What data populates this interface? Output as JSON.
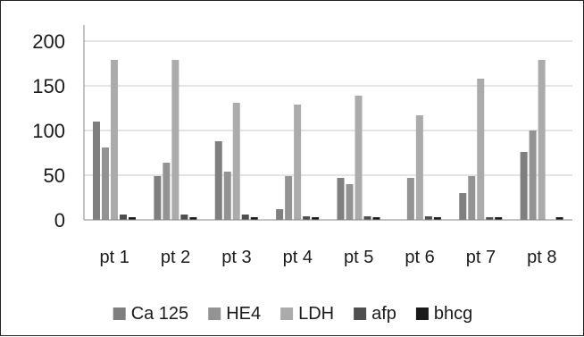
{
  "chart_data": {
    "type": "bar",
    "title": "",
    "xlabel": "",
    "ylabel": "",
    "categories": [
      "pt 1",
      "pt 2",
      "pt 3",
      "pt 4",
      "pt 5",
      "pt 6",
      "pt 7",
      "pt 8"
    ],
    "series": [
      {
        "name": "Ca 125",
        "color": "#7f7f7f",
        "values": [
          110,
          49,
          88,
          12,
          47,
          0,
          30,
          76
        ]
      },
      {
        "name": "HE4",
        "color": "#939393",
        "values": [
          81,
          64,
          54,
          49,
          40,
          47,
          49,
          100
        ]
      },
      {
        "name": "LDH",
        "color": "#ababab",
        "values": [
          179,
          179,
          131,
          129,
          139,
          117,
          158,
          179
        ]
      },
      {
        "name": "afp",
        "color": "#4f4f4f",
        "values": [
          6,
          6,
          6,
          4,
          4,
          4,
          3,
          0
        ]
      },
      {
        "name": "bhcg",
        "color": "#1a1a1a",
        "values": [
          3,
          3,
          3,
          3,
          3,
          3,
          3,
          3
        ]
      }
    ],
    "ylim": [
      0,
      200
    ],
    "yticks": [
      0,
      50,
      100,
      150,
      200
    ],
    "grid": true,
    "legend_position": "bottom"
  }
}
